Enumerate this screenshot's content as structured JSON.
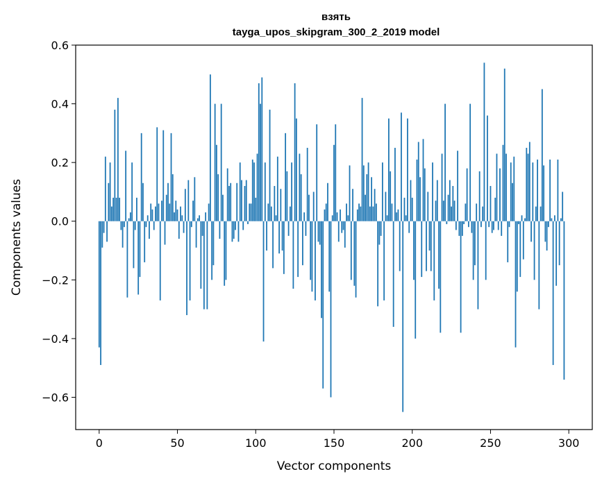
{
  "chart_data": {
    "type": "bar",
    "title": "взять",
    "subtitle": "tayga_upos_skipgram_300_2_2019 model",
    "xlabel": "Vector components",
    "ylabel": "Components values",
    "xlim": [
      -15,
      315
    ],
    "ylim": [
      -0.71,
      0.6
    ],
    "x_ticks": [
      0,
      50,
      100,
      150,
      200,
      250,
      300
    ],
    "y_ticks": [
      -0.6,
      -0.4,
      -0.2,
      0.0,
      0.2,
      0.4,
      0.6
    ],
    "x_tick_labels": [
      "0",
      "50",
      "100",
      "150",
      "200",
      "250",
      "300"
    ],
    "y_tick_labels": [
      "−0.6",
      "−0.4",
      "−0.2",
      "0.0",
      "0.2",
      "0.4",
      "0.6"
    ],
    "bar_color": "#1f77b4",
    "grid": false,
    "values": [
      -0.43,
      -0.49,
      -0.09,
      -0.04,
      0.22,
      -0.07,
      0.13,
      0.2,
      0.05,
      0.08,
      0.38,
      0.08,
      0.42,
      0.08,
      -0.03,
      -0.09,
      -0.02,
      0.24,
      -0.26,
      0.01,
      0.03,
      0.2,
      -0.16,
      -0.03,
      0.08,
      -0.25,
      -0.19,
      0.3,
      0.13,
      -0.14,
      -0.02,
      0.02,
      -0.06,
      0.06,
      0.04,
      -0.03,
      0.05,
      0.32,
      0.06,
      -0.27,
      0.07,
      0.31,
      -0.08,
      0.09,
      0.13,
      0.06,
      0.3,
      0.16,
      0.03,
      0.07,
      0.04,
      -0.06,
      0.05,
      0.02,
      -0.04,
      0.11,
      -0.32,
      0.14,
      -0.27,
      -0.02,
      0.07,
      0.15,
      -0.09,
      0.01,
      0.02,
      -0.23,
      -0.05,
      -0.3,
      0.03,
      -0.3,
      0.06,
      0.5,
      -0.2,
      -0.15,
      0.4,
      0.26,
      0.16,
      -0.06,
      0.4,
      0.09,
      -0.22,
      -0.2,
      0.18,
      0.12,
      0.13,
      -0.07,
      -0.06,
      -0.03,
      0.13,
      -0.07,
      0.2,
      0.14,
      -0.03,
      0.12,
      0.14,
      -0.01,
      0.06,
      0.06,
      0.21,
      0.2,
      0.08,
      0.23,
      0.47,
      0.4,
      0.49,
      -0.41,
      0.2,
      -0.1,
      0.06,
      0.38,
      0.05,
      -0.16,
      0.12,
      0.02,
      0.22,
      -0.11,
      0.11,
      -0.1,
      -0.18,
      0.3,
      0.17,
      -0.05,
      0.05,
      0.2,
      -0.23,
      0.47,
      0.35,
      -0.19,
      0.23,
      0.16,
      -0.15,
      0.03,
      -0.05,
      0.25,
      0.09,
      -0.2,
      -0.24,
      0.1,
      -0.27,
      0.33,
      -0.07,
      -0.08,
      -0.33,
      -0.57,
      0.04,
      0.06,
      0.13,
      -0.24,
      -0.6,
      0.02,
      0.26,
      0.33,
      0.03,
      -0.07,
      0.04,
      -0.04,
      -0.03,
      -0.09,
      0.06,
      0.02,
      0.19,
      -0.2,
      0.11,
      -0.22,
      -0.26,
      0.04,
      0.06,
      0.05,
      0.42,
      0.19,
      0.09,
      0.16,
      0.2,
      0.05,
      0.15,
      0.05,
      0.11,
      0.06,
      -0.29,
      -0.08,
      -0.05,
      0.2,
      -0.27,
      0.1,
      0.02,
      0.35,
      0.17,
      0.06,
      -0.36,
      0.25,
      0.03,
      0.04,
      -0.17,
      0.37,
      -0.65,
      0.08,
      0.02,
      0.35,
      -0.04,
      0.14,
      0.08,
      -0.2,
      -0.4,
      0.21,
      0.27,
      0.15,
      -0.19,
      0.28,
      0.18,
      -0.17,
      0.1,
      -0.1,
      -0.17,
      0.2,
      -0.27,
      0.07,
      0.14,
      -0.23,
      -0.38,
      0.23,
      0.07,
      0.4,
      -0.01,
      0.09,
      0.14,
      0.05,
      0.12,
      0.07,
      -0.03,
      0.24,
      -0.05,
      -0.38,
      -0.05,
      -0.01,
      0.06,
      0.18,
      -0.02,
      0.4,
      -0.04,
      -0.2,
      -0.15,
      0.06,
      -0.3,
      0.17,
      -0.02,
      0.05,
      0.54,
      -0.2,
      0.36,
      -0.02,
      0.12,
      -0.04,
      -0.03,
      0.08,
      0.23,
      -0.03,
      0.18,
      -0.05,
      0.26,
      0.52,
      0.23,
      -0.14,
      -0.02,
      0.2,
      0.13,
      0.22,
      -0.43,
      -0.24,
      -0.01,
      -0.19,
      0.02,
      -0.13,
      0.01,
      0.25,
      0.23,
      0.27,
      -0.07,
      0.2,
      -0.2,
      0.05,
      0.21,
      -0.3,
      0.05,
      0.45,
      0.19,
      -0.07,
      -0.1,
      -0.02,
      0.21,
      0.01,
      -0.49,
      0.02,
      -0.22,
      0.21,
      -0.15,
      0.01,
      0.1,
      -0.54
    ]
  }
}
